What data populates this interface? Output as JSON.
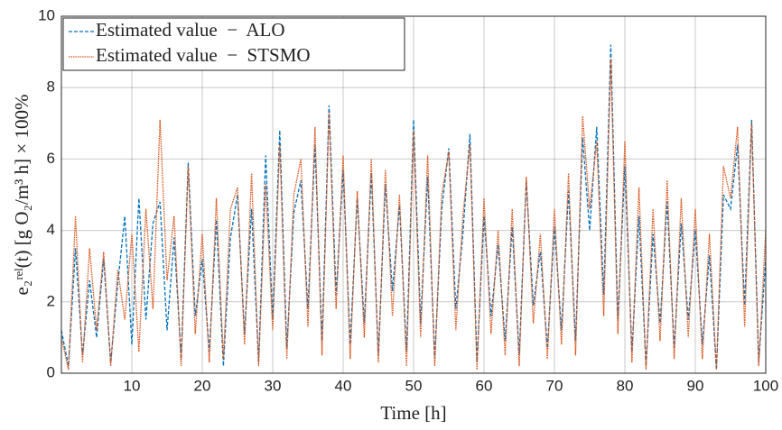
{
  "chart_data": {
    "type": "line",
    "x_label": "Time [h]",
    "y_label": "e₂ʳᵉˡ(t) [g O₂/m³ h] × 100%",
    "x": [
      0,
      1,
      2,
      3,
      4,
      5,
      6,
      7,
      8,
      9,
      10,
      11,
      12,
      13,
      14,
      15,
      16,
      17,
      18,
      19,
      20,
      21,
      22,
      23,
      24,
      25,
      26,
      27,
      28,
      29,
      30,
      31,
      32,
      33,
      34,
      35,
      36,
      37,
      38,
      39,
      40,
      41,
      42,
      43,
      44,
      45,
      46,
      47,
      48,
      49,
      50,
      51,
      52,
      53,
      54,
      55,
      56,
      57,
      58,
      59,
      60,
      61,
      62,
      63,
      64,
      65,
      66,
      67,
      68,
      69,
      70,
      71,
      72,
      73,
      74,
      75,
      76,
      77,
      78,
      79,
      80,
      81,
      82,
      83,
      84,
      85,
      86,
      87,
      88,
      89,
      90,
      91,
      92,
      93,
      94,
      95,
      96,
      97,
      98,
      99,
      100
    ],
    "series": [
      {
        "name": "Estimated value  −  ALO",
        "color": "#0072bd",
        "dash": "4,2",
        "values": [
          1.2,
          0.2,
          3.5,
          0.5,
          2.6,
          1.0,
          3.2,
          0.3,
          2.5,
          4.4,
          0.8,
          4.9,
          1.5,
          4.2,
          4.8,
          1.2,
          3.8,
          0.4,
          5.9,
          1.6,
          3.2,
          0.6,
          4.3,
          0.2,
          3.8,
          5.0,
          1.1,
          4.6,
          0.3,
          6.1,
          1.5,
          6.8,
          0.7,
          4.5,
          5.4,
          1.8,
          6.4,
          0.9,
          7.5,
          2.2,
          5.7,
          0.8,
          4.9,
          1.4,
          5.6,
          0.5,
          5.3,
          2.3,
          4.7,
          0.6,
          7.1,
          1.4,
          5.5,
          0.4,
          4.6,
          6.3,
          1.8,
          3.9,
          6.7,
          0.3,
          4.4,
          1.6,
          3.6,
          0.9,
          4.1,
          0.5,
          5.4,
          1.9,
          3.4,
          0.7,
          4.1,
          1.2,
          5.1,
          0.9,
          6.6,
          4.0,
          6.9,
          2.2,
          9.2,
          1.5,
          5.8,
          0.6,
          4.4,
          0.2,
          3.9,
          1.4,
          4.8,
          0.7,
          4.2,
          1.5,
          4.0,
          0.8,
          3.3,
          0.1,
          5.0,
          4.6,
          6.4,
          1.9,
          7.1,
          0.3,
          3.2
        ]
      },
      {
        "name": "Estimated value  −  STSMO",
        "color": "#d95319",
        "dash": "1.5,1",
        "values": [
          1.0,
          0.1,
          4.4,
          0.3,
          3.5,
          1.2,
          3.4,
          0.2,
          2.9,
          1.5,
          3.9,
          0.6,
          4.6,
          1.8,
          7.1,
          2.6,
          4.4,
          0.2,
          5.8,
          1.1,
          3.9,
          0.3,
          4.9,
          0.4,
          4.6,
          5.2,
          0.8,
          5.6,
          0.2,
          5.3,
          1.2,
          6.4,
          0.4,
          5.0,
          6.0,
          1.3,
          6.9,
          0.5,
          7.3,
          1.8,
          6.1,
          0.4,
          5.1,
          1.0,
          6.0,
          0.3,
          5.7,
          1.6,
          5.0,
          0.2,
          6.8,
          1.0,
          6.1,
          0.2,
          5.0,
          6.2,
          1.2,
          4.4,
          6.4,
          0.1,
          4.9,
          1.1,
          4.0,
          0.5,
          4.6,
          0.2,
          5.5,
          1.4,
          3.9,
          0.4,
          4.6,
          0.8,
          5.6,
          0.5,
          7.2,
          4.6,
          6.5,
          1.6,
          8.8,
          1.1,
          6.5,
          0.3,
          5.2,
          0.1,
          4.6,
          0.9,
          5.4,
          0.4,
          4.9,
          1.0,
          4.6,
          0.4,
          3.9,
          0.1,
          5.8,
          4.9,
          6.9,
          1.3,
          7.0,
          0.2,
          4.0
        ]
      }
    ],
    "xlim": [
      0,
      100
    ],
    "xticks": [
      10,
      20,
      30,
      40,
      50,
      60,
      70,
      80,
      90,
      100
    ],
    "ylim": [
      0,
      10
    ],
    "yticks": [
      0,
      2,
      4,
      6,
      8,
      10
    ],
    "grid": true,
    "legend": "top-left"
  }
}
